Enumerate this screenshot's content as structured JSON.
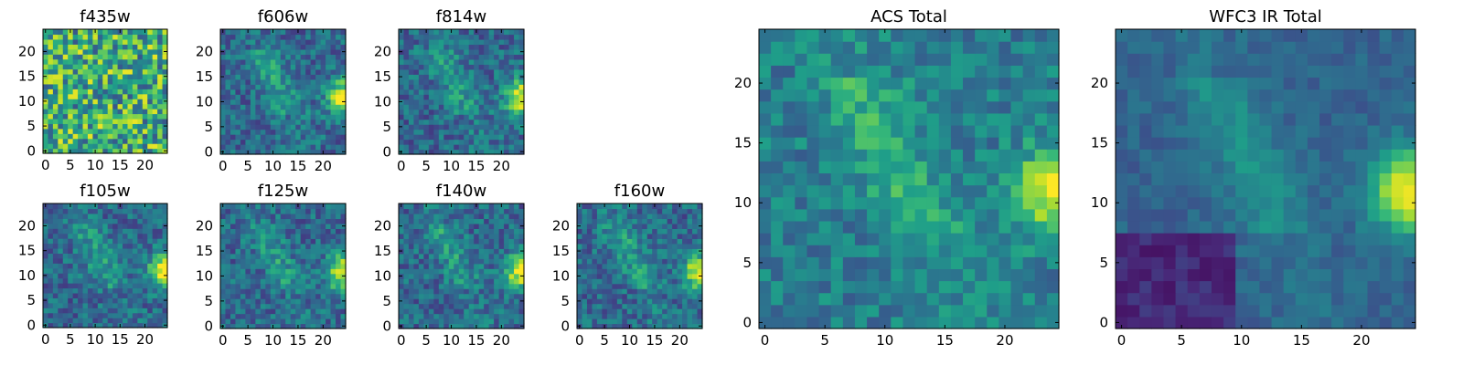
{
  "figure": {
    "colormap": "viridis",
    "colormap_stops": [
      "#440154",
      "#482878",
      "#3e4989",
      "#31688e",
      "#26828e",
      "#1f9e89",
      "#35b779",
      "#6ece58",
      "#b5de2b",
      "#fde725"
    ],
    "axis_color": "#000000"
  },
  "chart_data": [
    {
      "id": "f435w",
      "type": "heatmap",
      "title": "f435w",
      "xlim": [
        0,
        25
      ],
      "ylim": [
        0,
        25
      ],
      "xticks": [
        0,
        5,
        10,
        15,
        20
      ],
      "yticks": [
        0,
        5,
        10,
        15,
        20
      ],
      "grid": false,
      "pattern": "noise"
    },
    {
      "id": "f606w",
      "type": "heatmap",
      "title": "f606w",
      "xlim": [
        0,
        25
      ],
      "ylim": [
        0,
        25
      ],
      "xticks": [
        0,
        5,
        10,
        15,
        20
      ],
      "yticks": [
        0,
        5,
        10,
        15,
        20
      ],
      "grid": false,
      "pattern": "source"
    },
    {
      "id": "f814w",
      "type": "heatmap",
      "title": "f814w",
      "xlim": [
        0,
        25
      ],
      "ylim": [
        0,
        25
      ],
      "xticks": [
        0,
        5,
        10,
        15,
        20
      ],
      "yticks": [
        0,
        5,
        10,
        15,
        20
      ],
      "grid": false,
      "pattern": "source"
    },
    {
      "id": "f105w",
      "type": "heatmap",
      "title": "f105w",
      "xlim": [
        0,
        25
      ],
      "ylim": [
        0,
        25
      ],
      "xticks": [
        0,
        5,
        10,
        15,
        20
      ],
      "yticks": [
        0,
        5,
        10,
        15,
        20
      ],
      "grid": false,
      "pattern": "source"
    },
    {
      "id": "f125w",
      "type": "heatmap",
      "title": "f125w",
      "xlim": [
        0,
        25
      ],
      "ylim": [
        0,
        25
      ],
      "xticks": [
        0,
        5,
        10,
        15,
        20
      ],
      "yticks": [
        0,
        5,
        10,
        15,
        20
      ],
      "grid": false,
      "pattern": "source"
    },
    {
      "id": "f140w",
      "type": "heatmap",
      "title": "f140w",
      "xlim": [
        0,
        25
      ],
      "ylim": [
        0,
        25
      ],
      "xticks": [
        0,
        5,
        10,
        15,
        20
      ],
      "yticks": [
        0,
        5,
        10,
        15,
        20
      ],
      "grid": false,
      "pattern": "source"
    },
    {
      "id": "f160w",
      "type": "heatmap",
      "title": "f160w",
      "xlim": [
        0,
        25
      ],
      "ylim": [
        0,
        25
      ],
      "xticks": [
        0,
        5,
        10,
        15,
        20
      ],
      "yticks": [
        0,
        5,
        10,
        15,
        20
      ],
      "grid": false,
      "pattern": "source"
    },
    {
      "id": "acs-total",
      "type": "heatmap",
      "title": "ACS Total",
      "xlim": [
        0,
        25
      ],
      "ylim": [
        0,
        25
      ],
      "xticks": [
        0,
        5,
        10,
        15,
        20
      ],
      "yticks": [
        0,
        5,
        10,
        15,
        20
      ],
      "grid": false,
      "pattern": "smooth"
    },
    {
      "id": "wfc3-ir-total",
      "type": "heatmap",
      "title": "WFC3 IR Total",
      "xlim": [
        0,
        25
      ],
      "ylim": [
        0,
        25
      ],
      "xticks": [
        0,
        5,
        10,
        15,
        20
      ],
      "yticks": [
        0,
        5,
        10,
        15,
        20
      ],
      "grid": false,
      "pattern": "ir"
    }
  ]
}
